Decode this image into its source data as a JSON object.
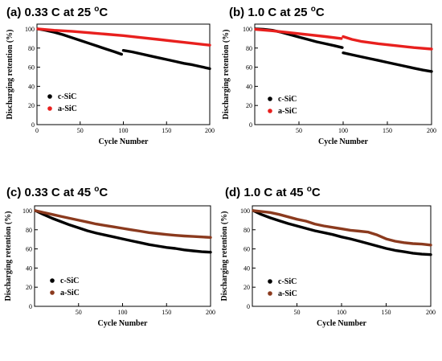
{
  "chart_data": [
    {
      "type": "line",
      "title": "(a) 0.33 C at 25 oC",
      "title_parts": {
        "prefix": "(a) 0.33 C at 25 ",
        "sup": "o",
        "suffix": "C"
      },
      "xlabel": "Cycle Number",
      "ylabel": "Discharging retention (%)",
      "xlim": [
        0,
        200
      ],
      "ylim": [
        0,
        105
      ],
      "xticks": [
        0,
        50,
        100,
        150,
        200
      ],
      "yticks": [
        0,
        20,
        40,
        60,
        80,
        100
      ],
      "legend_position": "center-left",
      "grid": false,
      "series": [
        {
          "name": "c-SiC",
          "color": "#000000",
          "segments": [
            {
              "x": [
                1,
                10,
                20,
                30,
                40,
                50,
                60,
                70,
                80,
                90,
                98
              ],
              "y": [
                100,
                98.5,
                96.5,
                94,
                91,
                88,
                85,
                82,
                79,
                76,
                73.5
              ]
            },
            {
              "x": [
                100,
                110,
                120,
                130,
                140,
                150,
                160,
                170,
                180,
                190,
                200
              ],
              "y": [
                77.5,
                76,
                74,
                72,
                70,
                68,
                66,
                64,
                62.5,
                60.5,
                58.5
              ]
            }
          ]
        },
        {
          "name": "a-SiC",
          "color": "#e8201e",
          "segments": [
            {
              "x": [
                1,
                20,
                40,
                60,
                80,
                100,
                120,
                140,
                160,
                180,
                200
              ],
              "y": [
                100,
                98.5,
                97.5,
                96,
                94.5,
                93,
                91,
                89,
                87,
                85,
                83
              ]
            }
          ]
        }
      ]
    },
    {
      "type": "line",
      "title": "(b) 1.0 C at 25 oC",
      "title_parts": {
        "prefix": "(b) 1.0 C at 25 ",
        "sup": "o",
        "suffix": "C"
      },
      "xlabel": "Cycle Number",
      "ylabel": "Discharging retention (%)",
      "xlim": [
        0,
        200
      ],
      "ylim": [
        0,
        105
      ],
      "xticks": [
        50,
        100,
        150,
        200
      ],
      "yticks": [
        0,
        20,
        40,
        60,
        80,
        100
      ],
      "legend_position": "center-left",
      "grid": false,
      "series": [
        {
          "name": "c-SiC",
          "color": "#000000",
          "segments": [
            {
              "x": [
                1,
                10,
                20,
                30,
                40,
                50,
                60,
                70,
                80,
                90,
                99
              ],
              "y": [
                100,
                99.5,
                98.5,
                96.5,
                94,
                91.5,
                89,
                86.5,
                84.5,
                82.5,
                80.5
              ]
            },
            {
              "x": [
                100,
                110,
                120,
                130,
                140,
                150,
                160,
                170,
                180,
                190,
                200
              ],
              "y": [
                75,
                73,
                71,
                69,
                67,
                65,
                63,
                61,
                59,
                57,
                55.5
              ]
            }
          ]
        },
        {
          "name": "a-SiC",
          "color": "#e8201e",
          "segments": [
            {
              "x": [
                1,
                20,
                40,
                60,
                80,
                98
              ],
              "y": [
                99.5,
                98,
                96,
                94,
                92,
                90
              ]
            },
            {
              "x": [
                100,
                110,
                120,
                140,
                160,
                180,
                200
              ],
              "y": [
                92,
                89,
                87,
                84.5,
                82.5,
                80.5,
                79
              ]
            }
          ]
        }
      ]
    },
    {
      "type": "line",
      "title": "(c) 0.33 C at 45 oC",
      "title_parts": {
        "prefix": "(c) 0.33 C at 45 ",
        "sup": "o",
        "suffix": "C"
      },
      "xlabel": "Cycle Number",
      "ylabel": "Discharging retention (%)",
      "xlim": [
        0,
        200
      ],
      "ylim": [
        0,
        105
      ],
      "xticks": [
        50,
        100,
        150,
        200
      ],
      "yticks": [
        0,
        20,
        40,
        60,
        80,
        100
      ],
      "legend_position": "bottom-left",
      "grid": false,
      "series": [
        {
          "name": "c-SiC",
          "color": "#000000",
          "segments": [
            {
              "x": [
                1,
                10,
                20,
                30,
                40,
                50,
                60,
                70,
                80,
                90,
                100,
                110,
                120,
                130,
                140,
                150,
                160,
                170,
                180,
                190,
                200
              ],
              "y": [
                100,
                96,
                92,
                88.5,
                85,
                82,
                79,
                76.5,
                74.5,
                72.5,
                70.5,
                68.5,
                66.5,
                64.5,
                63,
                61.5,
                60.5,
                59,
                58,
                57,
                56.5
              ]
            }
          ]
        },
        {
          "name": "a-SiC",
          "color": "#8b3a1e",
          "segments": [
            {
              "x": [
                1,
                10,
                20,
                30,
                40,
                50,
                60,
                70,
                80,
                90,
                100,
                110,
                120,
                130,
                140,
                150,
                160,
                170,
                180,
                190,
                200
              ],
              "y": [
                100,
                98,
                96,
                94,
                92,
                90,
                88,
                86,
                84.5,
                83,
                81.5,
                80,
                78.5,
                77,
                76,
                75,
                74.2,
                73.5,
                73,
                72.5,
                72
              ]
            }
          ]
        }
      ]
    },
    {
      "type": "line",
      "title": "(d) 1.0 C at 45 oC",
      "title_parts": {
        "prefix": "(d) 1.0 C at 45 ",
        "sup": "o",
        "suffix": "C"
      },
      "xlabel": "Cycle Number",
      "ylabel": "Discharging retention (%)",
      "xlim": [
        0,
        200
      ],
      "ylim": [
        0,
        105
      ],
      "xticks": [
        50,
        100,
        150,
        200
      ],
      "yticks": [
        0,
        20,
        40,
        60,
        80,
        100
      ],
      "legend_position": "bottom-left",
      "grid": false,
      "series": [
        {
          "name": "c-SiC",
          "color": "#000000",
          "segments": [
            {
              "x": [
                1,
                10,
                20,
                30,
                40,
                50,
                60,
                70,
                80,
                90,
                100,
                110,
                120,
                130,
                140,
                150,
                160,
                170,
                180,
                190,
                200
              ],
              "y": [
                100,
                96,
                92.5,
                89.5,
                86.5,
                84,
                81.5,
                79,
                77,
                75,
                72.5,
                70.5,
                68,
                65.5,
                63,
                60.5,
                58.5,
                57,
                55.5,
                54.5,
                54
              ]
            }
          ]
        },
        {
          "name": "a-SiC",
          "color": "#8b3a1e",
          "segments": [
            {
              "x": [
                1,
                10,
                20,
                30,
                40,
                50,
                60,
                70,
                80,
                90,
                100,
                110,
                120,
                130,
                140,
                150,
                160,
                170,
                180,
                190,
                200
              ],
              "y": [
                100,
                99,
                98,
                96,
                93.5,
                91,
                89,
                86,
                84,
                82.5,
                81,
                79.5,
                78.5,
                77.5,
                74.5,
                70.5,
                68,
                66.5,
                65.5,
                65,
                64
              ]
            }
          ]
        }
      ]
    }
  ]
}
